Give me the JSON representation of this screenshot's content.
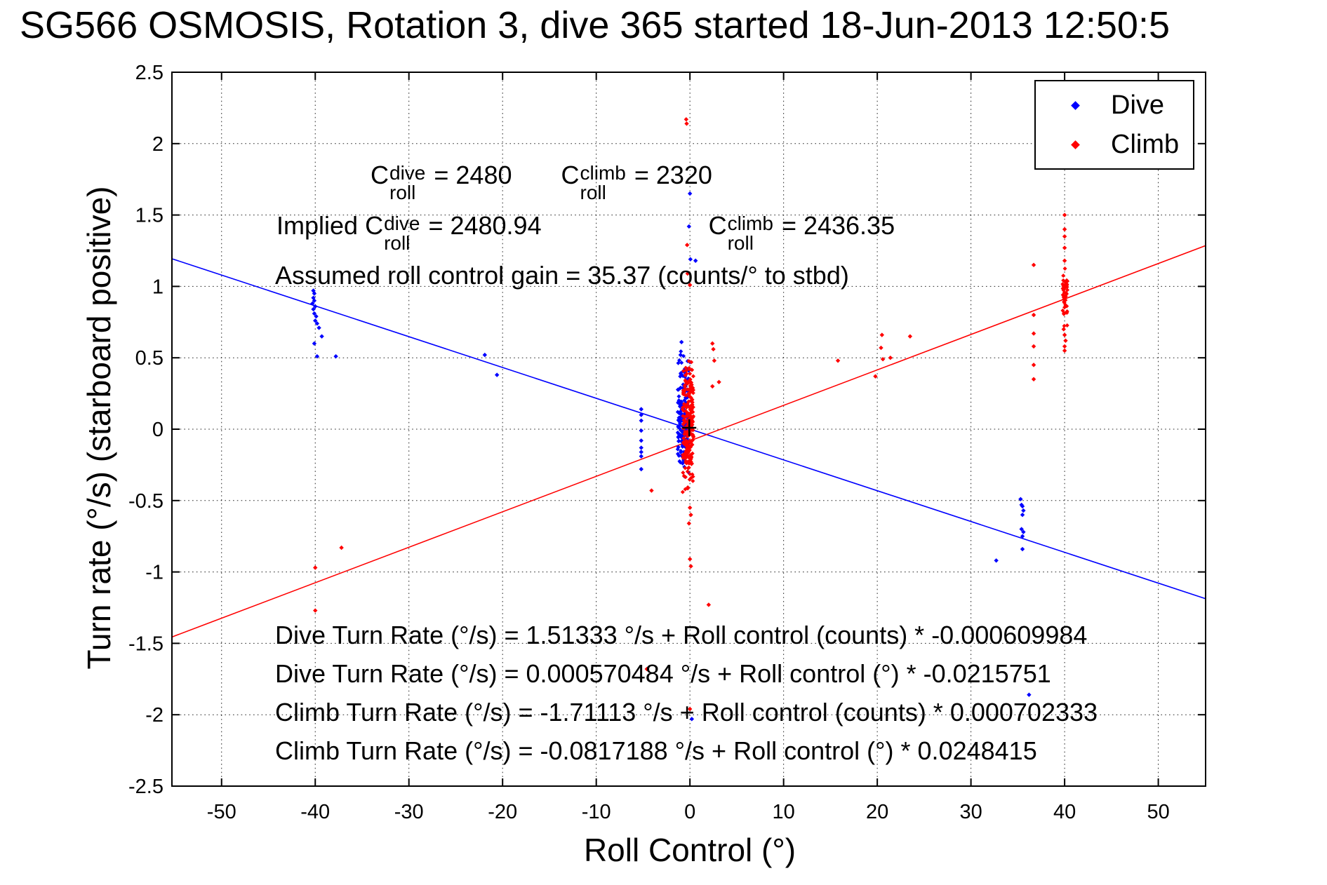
{
  "chart_data": {
    "type": "scatter",
    "title": "SG566 OSMOSIS, Rotation 3, dive 365 started 18-Jun-2013 12:50:5",
    "xlabel": "Roll Control (°)",
    "ylabel": "Turn rate (°/s) (starboard positive)",
    "xlim": [
      -55.3,
      55.05
    ],
    "ylim": [
      -2.5,
      2.5
    ],
    "xticks": [
      -50,
      -40,
      -30,
      -20,
      -10,
      0,
      10,
      20,
      30,
      40,
      50
    ],
    "xtick_labels": [
      "-50",
      "-40",
      "-30",
      "-20",
      "-10",
      "0",
      "10",
      "20",
      "30",
      "40",
      "50"
    ],
    "yticks": [
      -2.5,
      -2,
      -1.5,
      -1,
      -0.5,
      0,
      0.5,
      1,
      1.5,
      2,
      2.5
    ],
    "ytick_labels": [
      "-2.5",
      "-2",
      "-1.5",
      "-1",
      "-0.5",
      "0",
      "0.5",
      "1",
      "1.5",
      "2",
      "2.5"
    ],
    "grid": true,
    "grid_dash": "1.6 4.2",
    "axis_color": "#000000",
    "legend_position": "top-right",
    "series": [
      {
        "name": "Dive",
        "color": "#0000ff",
        "points": [
          [
            -40.2,
            0.97
          ],
          [
            -40.1,
            0.95
          ],
          [
            -40.2,
            0.92
          ],
          [
            -40.1,
            0.9
          ],
          [
            -40.3,
            0.88
          ],
          [
            -40.0,
            0.86
          ],
          [
            -40.2,
            0.84
          ],
          [
            -40.1,
            0.81
          ],
          [
            -39.9,
            0.79
          ],
          [
            -40.0,
            0.76
          ],
          [
            -39.8,
            0.74
          ],
          [
            -39.6,
            0.71
          ],
          [
            -39.3,
            0.65
          ],
          [
            -40.1,
            0.6
          ],
          [
            -39.8,
            0.51
          ],
          [
            -37.8,
            0.51
          ],
          [
            -21.9,
            0.52
          ],
          [
            -20.6,
            0.38
          ],
          [
            -5.2,
            0.14
          ],
          [
            -5.2,
            0.1
          ],
          [
            -5.2,
            0.06
          ],
          [
            -5.2,
            -0.01
          ],
          [
            -5.2,
            -0.08
          ],
          [
            -5.2,
            -0.13
          ],
          [
            -5.2,
            -0.16
          ],
          [
            -5.2,
            -0.19
          ],
          [
            -5.2,
            -0.28
          ],
          [
            0.0,
            1.65
          ],
          [
            -0.1,
            1.42
          ],
          [
            0.05,
            1.19
          ],
          [
            0.6,
            1.18
          ],
          [
            -0.9,
            0.61
          ],
          [
            -1.0,
            0.52
          ],
          [
            0.0,
            0.47
          ],
          [
            0.2,
            -2.03
          ],
          [
            36.2,
            -1.86
          ],
          [
            35.5,
            -0.54
          ],
          [
            35.6,
            -0.57
          ],
          [
            35.5,
            -0.6
          ],
          [
            35.4,
            -0.7
          ],
          [
            35.6,
            -0.72
          ],
          [
            35.5,
            -0.75
          ],
          [
            35.5,
            -0.84
          ],
          [
            32.7,
            -0.92
          ],
          [
            35.3,
            -0.49
          ],
          [
            35.4,
            -0.53
          ]
        ]
      },
      {
        "name": "Climb",
        "color": "#ff0000",
        "points": [
          [
            -0.4,
            2.17
          ],
          [
            -0.35,
            2.14
          ],
          [
            -0.3,
            1.29
          ],
          [
            -0.25,
            1.09
          ],
          [
            0.0,
            1.01
          ],
          [
            2.4,
            0.6
          ],
          [
            2.5,
            0.56
          ],
          [
            2.6,
            0.48
          ],
          [
            2.4,
            0.3
          ],
          [
            3.1,
            0.33
          ],
          [
            15.8,
            0.48
          ],
          [
            19.8,
            0.37
          ],
          [
            20.4,
            0.57
          ],
          [
            20.5,
            0.66
          ],
          [
            20.6,
            0.49
          ],
          [
            21.4,
            0.5
          ],
          [
            23.5,
            0.65
          ],
          [
            40.0,
            1.5
          ],
          [
            40.0,
            1.4
          ],
          [
            40.0,
            1.35
          ],
          [
            40.0,
            1.27
          ],
          [
            40.0,
            1.18
          ],
          [
            39.9,
            0.7
          ],
          [
            40.0,
            0.66
          ],
          [
            40.1,
            0.62
          ],
          [
            40.0,
            0.58
          ],
          [
            40.0,
            0.55
          ],
          [
            36.7,
            1.15
          ],
          [
            36.7,
            0.8
          ],
          [
            36.7,
            0.67
          ],
          [
            36.7,
            0.58
          ],
          [
            36.7,
            0.45
          ],
          [
            36.7,
            0.35
          ],
          [
            0.0,
            -0.55
          ],
          [
            0.1,
            -0.6
          ],
          [
            -0.1,
            -0.66
          ],
          [
            0.0,
            -0.91
          ],
          [
            0.1,
            -0.96
          ],
          [
            2.0,
            -1.23
          ],
          [
            -4.1,
            -0.43
          ],
          [
            0.0,
            -1.96
          ],
          [
            -4.6,
            -1.68
          ],
          [
            -40.0,
            -0.97
          ],
          [
            -37.2,
            -0.83
          ],
          [
            -40.0,
            -1.27
          ]
        ]
      }
    ],
    "dense_clusters": [
      {
        "series": 0,
        "cx": -0.68,
        "x_spread": 1.25,
        "cy": 0.1,
        "y_spread": 0.47,
        "count": 170
      },
      {
        "series": 1,
        "cx": -0.2,
        "x_spread": 1.15,
        "cy": 0.02,
        "y_spread": 0.5,
        "count": 230
      },
      {
        "series": 1,
        "cx": 40.05,
        "x_spread": 0.55,
        "cy": 0.93,
        "y_spread": 0.22,
        "count": 45
      }
    ],
    "fit_lines": [
      {
        "name": "dive-fit",
        "color": "#0000ff",
        "intercept": 0.000570484,
        "slope": -0.0215751
      },
      {
        "name": "climb-fit",
        "color": "#ff0000",
        "intercept": -0.0817188,
        "slope": 0.0248415
      }
    ],
    "center_marker": {
      "x": -0.07,
      "y": 0.01,
      "color": "#000000"
    },
    "legend": {
      "entries": [
        {
          "label": "Dive",
          "color": "#0000ff"
        },
        {
          "label": "Climb",
          "color": "#ff0000"
        }
      ]
    }
  },
  "annotations": {
    "line1": {
      "a": {
        "sym": "C",
        "sup": "dive",
        "sub": "roll",
        "value": "= 2480"
      },
      "b": {
        "sym": "C",
        "sup": "climb",
        "sub": "roll",
        "value": "= 2320"
      }
    },
    "line2": {
      "prefix": "Implied ",
      "a": {
        "sym": "C",
        "sup": "dive",
        "sub": "roll",
        "value": "= 2480.94"
      },
      "b": {
        "sym": "C",
        "sup": "climb",
        "sub": "roll",
        "value": "= 2436.35"
      }
    },
    "gain": "Assumed roll control gain = 35.37 (counts/° to stbd)",
    "equations": [
      "Dive Turn Rate (°/s) = 1.51333 °/s + Roll control (counts) * -0.000609984",
      "Dive Turn Rate (°/s) = 0.000570484 °/s + Roll control (°) * -0.0215751",
      "Climb Turn Rate (°/s) = -1.71113 °/s + Roll control (counts) * 0.000702333",
      "Climb Turn Rate (°/s) = -0.0817188 °/s + Roll control (°) * 0.0248415"
    ]
  }
}
